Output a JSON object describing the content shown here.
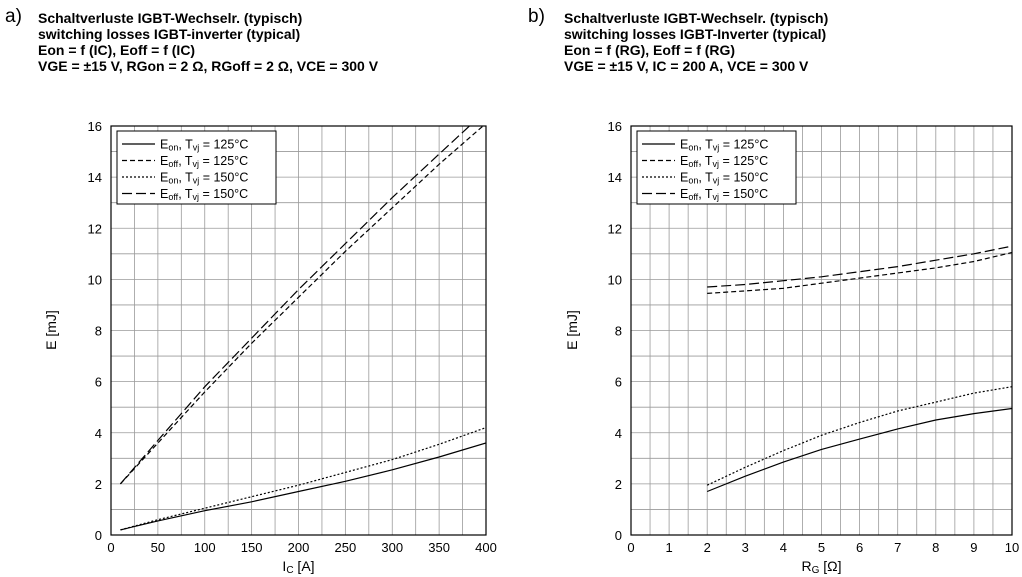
{
  "panels": [
    {
      "letter": "a)",
      "title_lines": [
        "Schaltverluste IGBT-Wechselr. (typisch)",
        "switching losses IGBT-inverter (typical)",
        "Eon = f (IC), Eoff = f (IC)",
        "VGE = ±15 V, RGon = 2 Ω, RGoff = 2 Ω, VCE = 300 V"
      ]
    },
    {
      "letter": "b)",
      "title_lines": [
        "Schaltverluste IGBT-Wechselr. (typisch)",
        "switching losses IGBT-Inverter (typical)",
        "Eon = f (RG), Eoff = f (RG)",
        "VGE = ±15 V, IC = 200 A, VCE = 300 V"
      ]
    }
  ],
  "chart_data": [
    {
      "type": "line",
      "xlabel": "IC [A]",
      "ylabel": "E [mJ]",
      "xlim": [
        0,
        400
      ],
      "ylim": [
        0,
        16
      ],
      "xticks": [
        0,
        50,
        100,
        150,
        200,
        250,
        300,
        350,
        400
      ],
      "yticks": [
        0,
        2,
        4,
        6,
        8,
        10,
        12,
        14,
        16
      ],
      "grid": true,
      "legend_position": "top-left",
      "series": [
        {
          "name": "Eon, Tvj = 125°C",
          "style": "solid",
          "x": [
            10,
            50,
            100,
            150,
            200,
            250,
            300,
            350,
            400
          ],
          "y": [
            0.2,
            0.55,
            0.95,
            1.3,
            1.7,
            2.1,
            2.55,
            3.05,
            3.6
          ]
        },
        {
          "name": "Eoff, Tvj = 125°C",
          "style": "dashed",
          "x": [
            10,
            50,
            100,
            150,
            200,
            250,
            300,
            350,
            400
          ],
          "y": [
            2.0,
            3.6,
            5.6,
            7.5,
            9.3,
            11.1,
            12.8,
            14.5,
            16.1
          ]
        },
        {
          "name": "Eon, Tvj = 150°C",
          "style": "dotted",
          "x": [
            10,
            50,
            100,
            150,
            200,
            250,
            300,
            350,
            400
          ],
          "y": [
            0.2,
            0.6,
            1.05,
            1.5,
            1.95,
            2.45,
            2.95,
            3.55,
            4.2
          ]
        },
        {
          "name": "Eoff, Tvj = 150°C",
          "style": "longdash",
          "x": [
            10,
            50,
            100,
            150,
            200,
            250,
            300,
            350,
            400
          ],
          "y": [
            2.0,
            3.7,
            5.8,
            7.7,
            9.6,
            11.4,
            13.2,
            14.9,
            16.6
          ]
        }
      ]
    },
    {
      "type": "line",
      "xlabel": "RG [Ω]",
      "ylabel": "E [mJ]",
      "xlim": [
        0,
        10
      ],
      "ylim": [
        0,
        16
      ],
      "xticks": [
        0,
        1,
        2,
        3,
        4,
        5,
        6,
        7,
        8,
        9,
        10
      ],
      "yticks": [
        0,
        2,
        4,
        6,
        8,
        10,
        12,
        14,
        16
      ],
      "grid": true,
      "legend_position": "top-left",
      "series": [
        {
          "name": "Eon, Tvj = 125°C",
          "style": "solid",
          "x": [
            2,
            3,
            4,
            5,
            6,
            7,
            8,
            9,
            10
          ],
          "y": [
            1.7,
            2.3,
            2.85,
            3.35,
            3.75,
            4.15,
            4.5,
            4.75,
            4.95
          ]
        },
        {
          "name": "Eoff, Tvj = 125°C",
          "style": "dashed",
          "x": [
            2,
            3,
            4,
            5,
            6,
            7,
            8,
            9,
            10
          ],
          "y": [
            9.45,
            9.55,
            9.65,
            9.85,
            10.05,
            10.25,
            10.45,
            10.7,
            11.05
          ]
        },
        {
          "name": "Eon, Tvj = 150°C",
          "style": "dotted",
          "x": [
            2,
            3,
            4,
            5,
            6,
            7,
            8,
            9,
            10
          ],
          "y": [
            1.95,
            2.65,
            3.3,
            3.9,
            4.4,
            4.85,
            5.2,
            5.55,
            5.8
          ]
        },
        {
          "name": "Eoff, Tvj = 150°C",
          "style": "longdash",
          "x": [
            2,
            3,
            4,
            5,
            6,
            7,
            8,
            9,
            10
          ],
          "y": [
            9.7,
            9.8,
            9.95,
            10.1,
            10.3,
            10.5,
            10.75,
            11.0,
            11.3
          ]
        }
      ]
    }
  ]
}
